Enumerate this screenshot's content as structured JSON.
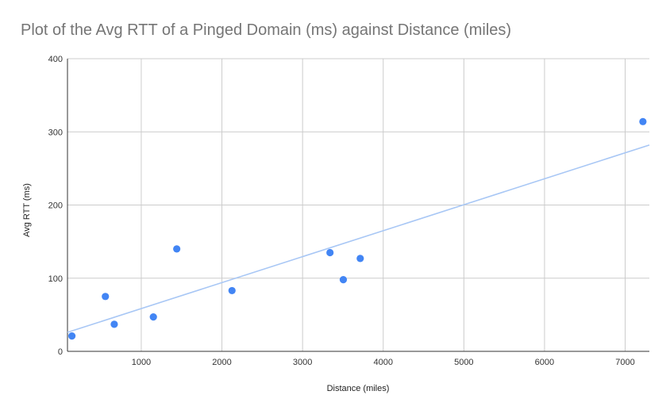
{
  "chart_data": {
    "type": "scatter",
    "title": "Plot of the Avg RTT of a Pinged Domain (ms) against Distance (miles)",
    "xlabel": "Distance (miles)",
    "ylabel": "Avg RTT (ms)",
    "xlim": [
      85,
      7300
    ],
    "ylim": [
      0,
      400
    ],
    "x_ticks": [
      1000,
      2000,
      3000,
      4000,
      5000,
      6000,
      7000
    ],
    "y_ticks": [
      0,
      100,
      200,
      300,
      400
    ],
    "x_tick_labels": [
      "1000",
      "2000",
      "3000",
      "4000",
      "5000",
      "6000",
      "7000"
    ],
    "y_tick_labels": [
      "0",
      "100",
      "200",
      "300",
      "400"
    ],
    "grid": true,
    "legend": "none",
    "series": [
      {
        "color": "#4285f4",
        "points": [
          {
            "x": 140,
            "y": 21
          },
          {
            "x": 555,
            "y": 75
          },
          {
            "x": 665,
            "y": 37
          },
          {
            "x": 1150,
            "y": 47
          },
          {
            "x": 1440,
            "y": 140
          },
          {
            "x": 2125,
            "y": 83
          },
          {
            "x": 3340,
            "y": 135
          },
          {
            "x": 3505,
            "y": 98
          },
          {
            "x": 3715,
            "y": 127
          },
          {
            "x": 7220,
            "y": 314
          }
        ]
      }
    ],
    "trendline": {
      "type": "linear",
      "color": "#a8c7f5",
      "start": {
        "x": 85,
        "y": 26
      },
      "end": {
        "x": 7300,
        "y": 282
      }
    }
  }
}
